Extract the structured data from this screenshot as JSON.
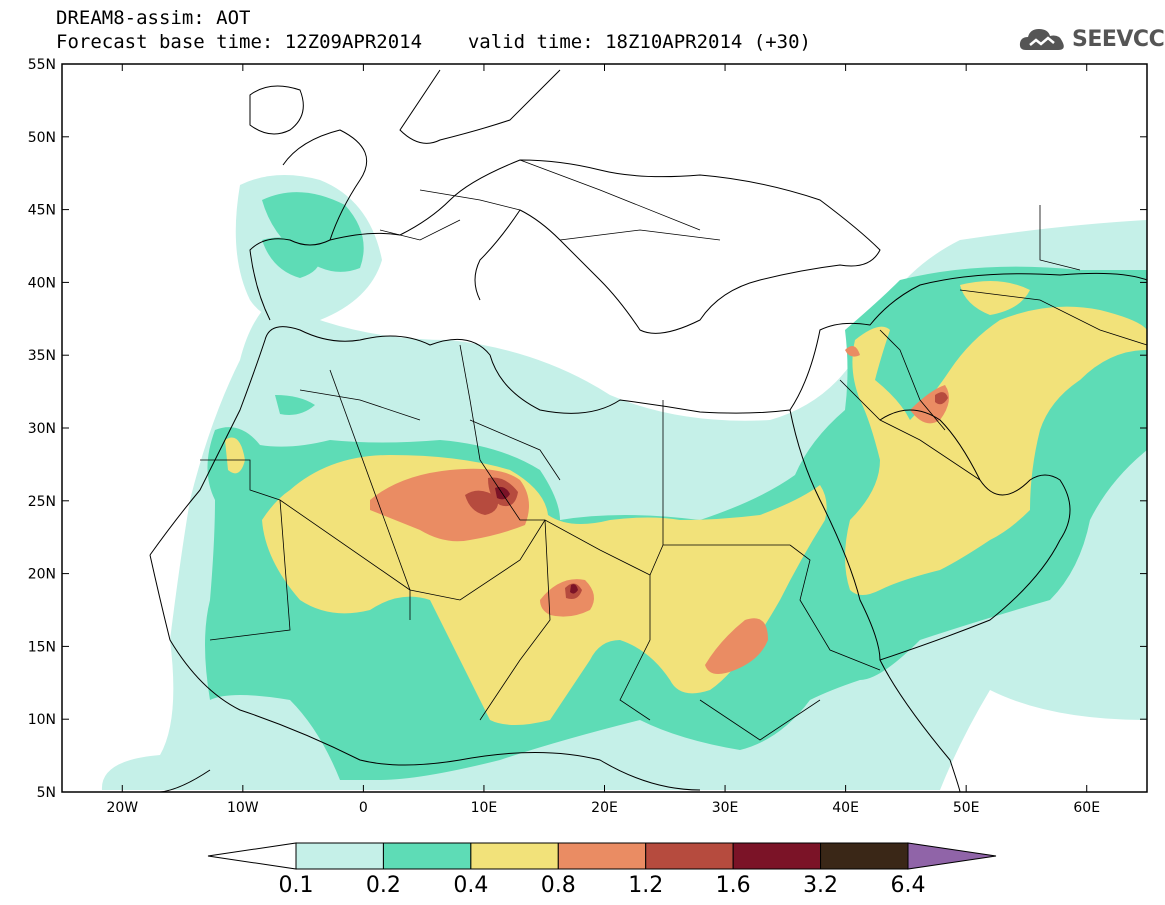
{
  "header": {
    "title": "DREAM8-assim: AOT",
    "base_time_label": "Forecast base time: 12Z09APR2014",
    "valid_time_label": "valid time: 18Z10APR2014 (+30)"
  },
  "logo": {
    "text": "SEEVCCC",
    "icon": "cloud-logo-icon"
  },
  "map": {
    "lon_range": [
      -25,
      65
    ],
    "lat_range": [
      5,
      55
    ],
    "lat_ticks": [
      {
        "value": 5,
        "label": "5N"
      },
      {
        "value": 10,
        "label": "10N"
      },
      {
        "value": 15,
        "label": "15N"
      },
      {
        "value": 20,
        "label": "20N"
      },
      {
        "value": 25,
        "label": "25N"
      },
      {
        "value": 30,
        "label": "30N"
      },
      {
        "value": 35,
        "label": "35N"
      },
      {
        "value": 40,
        "label": "40N"
      },
      {
        "value": 45,
        "label": "45N"
      },
      {
        "value": 50,
        "label": "50N"
      },
      {
        "value": 55,
        "label": "55N"
      }
    ],
    "lon_ticks": [
      {
        "value": -20,
        "label": "20W"
      },
      {
        "value": -10,
        "label": "10W"
      },
      {
        "value": 0,
        "label": "0"
      },
      {
        "value": 10,
        "label": "10E"
      },
      {
        "value": 20,
        "label": "20E"
      },
      {
        "value": 30,
        "label": "30E"
      },
      {
        "value": 40,
        "label": "40E"
      },
      {
        "value": 50,
        "label": "50E"
      },
      {
        "value": 60,
        "label": "60E"
      }
    ]
  },
  "colorbar": {
    "colors": [
      "#c5f0e8",
      "#5edcb6",
      "#f2e27a",
      "#ea8c63",
      "#b64b3e",
      "#7b1327",
      "#3a2717",
      "#9064a8"
    ],
    "labels": [
      "0.1",
      "0.2",
      "0.4",
      "0.8",
      "1.2",
      "1.6",
      "3.2",
      "6.4"
    ]
  }
}
